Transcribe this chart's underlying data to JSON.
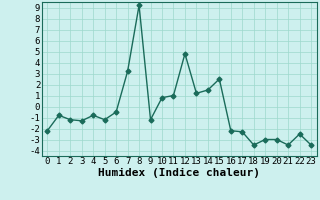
{
  "title": "",
  "xlabel": "Humidex (Indice chaleur)",
  "x_values": [
    0,
    1,
    2,
    3,
    4,
    5,
    6,
    7,
    8,
    9,
    10,
    11,
    12,
    13,
    14,
    15,
    16,
    17,
    18,
    19,
    20,
    21,
    22,
    23
  ],
  "y_values": [
    -2.2,
    -0.8,
    -1.2,
    -1.3,
    -0.8,
    -1.2,
    -0.5,
    3.2,
    9.2,
    -1.2,
    0.8,
    1.0,
    4.8,
    1.2,
    1.5,
    2.5,
    -2.2,
    -2.3,
    -3.5,
    -3.0,
    -3.0,
    -3.5,
    -2.5,
    -3.5
  ],
  "ylim": [
    -4.5,
    9.5
  ],
  "xlim": [
    -0.5,
    23.5
  ],
  "yticks": [
    -4,
    -3,
    -2,
    -1,
    0,
    1,
    2,
    3,
    4,
    5,
    6,
    7,
    8,
    9
  ],
  "xticks": [
    0,
    1,
    2,
    3,
    4,
    5,
    6,
    7,
    8,
    9,
    10,
    11,
    12,
    13,
    14,
    15,
    16,
    17,
    18,
    19,
    20,
    21,
    22,
    23
  ],
  "line_color": "#1a6b5a",
  "marker": "D",
  "marker_size": 2.5,
  "background_color": "#cdf0ee",
  "grid_color": "#9dd8cc",
  "tick_label_fontsize": 6.5,
  "xlabel_fontsize": 8,
  "line_width": 1.0
}
